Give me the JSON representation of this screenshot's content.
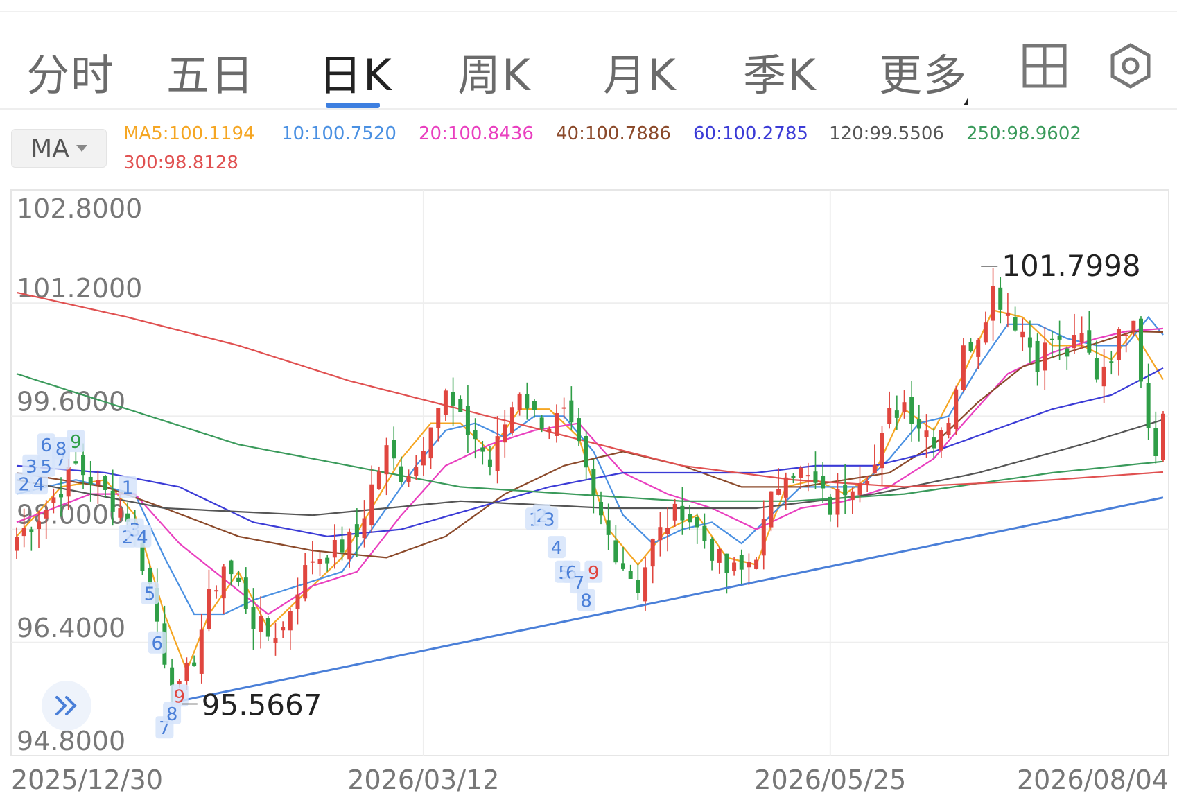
{
  "tabs": [
    {
      "label": "分时",
      "active": false
    },
    {
      "label": "五日",
      "active": false
    },
    {
      "label": "日K",
      "active": true
    },
    {
      "label": "周K",
      "active": false
    },
    {
      "label": "月K",
      "active": false
    },
    {
      "label": "季K",
      "active": false
    },
    {
      "label": "更多",
      "active": false
    }
  ],
  "icons": {
    "grid": "grid-icon",
    "settings": "settings-icon",
    "expand": "double-chevron-right-icon"
  },
  "ma": {
    "button_label": "MA",
    "values": [
      {
        "label": "MA5:100.1194",
        "color": "#f5a623"
      },
      {
        "label": "10:100.7520",
        "color": "#4a90e2"
      },
      {
        "label": "20:100.8436",
        "color": "#e93fbf"
      },
      {
        "label": "40:100.7886",
        "color": "#8b4a2b"
      },
      {
        "label": "60:100.2785",
        "color": "#3b3bd6"
      },
      {
        "label": "120:99.5506",
        "color": "#555555"
      },
      {
        "label": "250:98.9602",
        "color": "#3a9a5b"
      },
      {
        "label": "300:98.8128",
        "color": "#e05050"
      }
    ]
  },
  "chart_data": {
    "type": "candlestick",
    "ylim": [
      94.8,
      102.8
    ],
    "y_ticks": [
      "102.8000",
      "101.2000",
      "99.6000",
      "98.0000",
      "96.4000",
      "94.8000"
    ],
    "x_ticks": [
      "2025/12/30",
      "2026/03/12",
      "2026/05/25",
      "2026/08/04"
    ],
    "annotations": {
      "high": "101.7998",
      "low": "95.5667"
    },
    "up_color": "#e0463f",
    "down_color": "#2f9e47",
    "trendline": {
      "color": "#4a7fd8",
      "from": 95.57,
      "to": 98.45
    },
    "close_path": [
      [
        0,
        97.9
      ],
      [
        4,
        98.3
      ],
      [
        8,
        98.9
      ],
      [
        12,
        98.5
      ],
      [
        15,
        98.2
      ],
      [
        18,
        97.2
      ],
      [
        20,
        96.2
      ],
      [
        22,
        95.7
      ],
      [
        24,
        96.2
      ],
      [
        26,
        97.0
      ],
      [
        28,
        97.5
      ],
      [
        30,
        97.2
      ],
      [
        32,
        96.7
      ],
      [
        34,
        96.5
      ],
      [
        36,
        96.6
      ],
      [
        38,
        97.2
      ],
      [
        40,
        97.6
      ],
      [
        43,
        97.7
      ],
      [
        46,
        97.9
      ],
      [
        48,
        98.6
      ],
      [
        50,
        99.1
      ],
      [
        52,
        98.8
      ],
      [
        54,
        98.9
      ],
      [
        56,
        99.6
      ],
      [
        58,
        99.9
      ],
      [
        60,
        99.5
      ],
      [
        62,
        99.3
      ],
      [
        64,
        98.9
      ],
      [
        66,
        99.5
      ],
      [
        68,
        100.0
      ],
      [
        70,
        99.6
      ],
      [
        72,
        99.5
      ],
      [
        74,
        99.6
      ],
      [
        76,
        99.1
      ],
      [
        78,
        98.4
      ],
      [
        80,
        97.9
      ],
      [
        82,
        97.5
      ],
      [
        84,
        97.2
      ],
      [
        86,
        97.8
      ],
      [
        88,
        98.1
      ],
      [
        90,
        98.3
      ],
      [
        92,
        98.0
      ],
      [
        94,
        97.7
      ],
      [
        96,
        97.4
      ],
      [
        98,
        97.4
      ],
      [
        100,
        97.7
      ],
      [
        102,
        98.4
      ],
      [
        104,
        98.9
      ],
      [
        106,
        98.8
      ],
      [
        108,
        98.6
      ],
      [
        110,
        98.3
      ],
      [
        112,
        98.6
      ],
      [
        114,
        98.8
      ],
      [
        116,
        98.9
      ],
      [
        118,
        99.6
      ],
      [
        120,
        99.8
      ],
      [
        122,
        99.5
      ],
      [
        124,
        99.3
      ],
      [
        126,
        99.6
      ],
      [
        128,
        100.5
      ],
      [
        130,
        100.8
      ],
      [
        132,
        101.4
      ],
      [
        134,
        101.1
      ],
      [
        136,
        100.8
      ],
      [
        138,
        100.4
      ],
      [
        140,
        100.7
      ],
      [
        142,
        100.5
      ],
      [
        144,
        100.7
      ],
      [
        146,
        100.2
      ],
      [
        148,
        100.5
      ],
      [
        150,
        100.9
      ],
      [
        151,
        101.1
      ],
      [
        152,
        100.2
      ],
      [
        153,
        99.5
      ],
      [
        154,
        99.2
      ],
      [
        155,
        99.6
      ]
    ],
    "ma_lines": [
      {
        "name": "MA5",
        "color": "#f5a623",
        "pts": [
          [
            0,
            97.9
          ],
          [
            6,
            98.6
          ],
          [
            12,
            98.7
          ],
          [
            16,
            98.2
          ],
          [
            20,
            96.8
          ],
          [
            23,
            96.0
          ],
          [
            26,
            96.8
          ],
          [
            30,
            97.4
          ],
          [
            34,
            96.6
          ],
          [
            38,
            97.0
          ],
          [
            44,
            97.6
          ],
          [
            48,
            98.3
          ],
          [
            52,
            99.0
          ],
          [
            56,
            99.5
          ],
          [
            60,
            99.5
          ],
          [
            64,
            99.1
          ],
          [
            68,
            99.7
          ],
          [
            72,
            99.7
          ],
          [
            76,
            99.3
          ],
          [
            80,
            98.0
          ],
          [
            84,
            97.5
          ],
          [
            88,
            98.0
          ],
          [
            92,
            98.2
          ],
          [
            96,
            97.6
          ],
          [
            100,
            97.5
          ],
          [
            104,
            98.6
          ],
          [
            108,
            98.7
          ],
          [
            112,
            98.5
          ],
          [
            116,
            98.8
          ],
          [
            120,
            99.7
          ],
          [
            124,
            99.4
          ],
          [
            128,
            100.2
          ],
          [
            132,
            101.1
          ],
          [
            136,
            101.0
          ],
          [
            140,
            100.6
          ],
          [
            144,
            100.6
          ],
          [
            148,
            100.4
          ],
          [
            151,
            100.8
          ],
          [
            155,
            100.12
          ]
        ]
      },
      {
        "name": "MA10",
        "color": "#4a90e2",
        "pts": [
          [
            0,
            98.5
          ],
          [
            8,
            98.7
          ],
          [
            16,
            98.5
          ],
          [
            20,
            97.6
          ],
          [
            24,
            96.8
          ],
          [
            28,
            96.8
          ],
          [
            32,
            97.0
          ],
          [
            38,
            97.2
          ],
          [
            44,
            97.4
          ],
          [
            50,
            98.3
          ],
          [
            54,
            98.9
          ],
          [
            58,
            99.4
          ],
          [
            62,
            99.5
          ],
          [
            66,
            99.3
          ],
          [
            70,
            99.6
          ],
          [
            74,
            99.6
          ],
          [
            78,
            99.1
          ],
          [
            82,
            98.2
          ],
          [
            86,
            97.8
          ],
          [
            90,
            98.0
          ],
          [
            94,
            98.1
          ],
          [
            98,
            97.8
          ],
          [
            102,
            98.2
          ],
          [
            106,
            98.6
          ],
          [
            110,
            98.6
          ],
          [
            114,
            98.6
          ],
          [
            118,
            99.0
          ],
          [
            122,
            99.5
          ],
          [
            126,
            99.6
          ],
          [
            130,
            100.3
          ],
          [
            134,
            100.9
          ],
          [
            138,
            100.9
          ],
          [
            142,
            100.7
          ],
          [
            146,
            100.6
          ],
          [
            150,
            100.6
          ],
          [
            153,
            101.0
          ],
          [
            155,
            100.75
          ]
        ]
      },
      {
        "name": "MA20",
        "color": "#e93fbf",
        "pts": [
          [
            0,
            98.1
          ],
          [
            10,
            98.5
          ],
          [
            16,
            98.5
          ],
          [
            22,
            97.8
          ],
          [
            28,
            97.3
          ],
          [
            34,
            96.8
          ],
          [
            40,
            97.2
          ],
          [
            46,
            97.4
          ],
          [
            52,
            98.2
          ],
          [
            58,
            98.9
          ],
          [
            64,
            99.2
          ],
          [
            70,
            99.4
          ],
          [
            76,
            99.5
          ],
          [
            82,
            98.8
          ],
          [
            88,
            98.5
          ],
          [
            94,
            98.3
          ],
          [
            100,
            98.0
          ],
          [
            106,
            98.3
          ],
          [
            112,
            98.4
          ],
          [
            118,
            98.6
          ],
          [
            124,
            99.0
          ],
          [
            128,
            99.5
          ],
          [
            134,
            100.2
          ],
          [
            140,
            100.5
          ],
          [
            146,
            100.7
          ],
          [
            150,
            100.8
          ],
          [
            155,
            100.84
          ]
        ]
      },
      {
        "name": "MA40",
        "color": "#8b4a2b",
        "pts": [
          [
            0,
            98.8
          ],
          [
            12,
            98.6
          ],
          [
            20,
            98.3
          ],
          [
            30,
            97.9
          ],
          [
            40,
            97.7
          ],
          [
            50,
            97.6
          ],
          [
            58,
            97.9
          ],
          [
            66,
            98.5
          ],
          [
            74,
            98.9
          ],
          [
            82,
            99.1
          ],
          [
            90,
            98.9
          ],
          [
            98,
            98.6
          ],
          [
            106,
            98.6
          ],
          [
            112,
            98.7
          ],
          [
            118,
            98.8
          ],
          [
            124,
            99.2
          ],
          [
            130,
            99.8
          ],
          [
            136,
            100.3
          ],
          [
            142,
            100.5
          ],
          [
            148,
            100.7
          ],
          [
            151,
            100.8
          ],
          [
            155,
            100.79
          ]
        ]
      },
      {
        "name": "MA60",
        "color": "#3b3bd6",
        "pts": [
          [
            0,
            98.9
          ],
          [
            12,
            98.8
          ],
          [
            22,
            98.6
          ],
          [
            32,
            98.1
          ],
          [
            42,
            97.9
          ],
          [
            52,
            98.0
          ],
          [
            62,
            98.3
          ],
          [
            72,
            98.6
          ],
          [
            82,
            98.8
          ],
          [
            92,
            98.8
          ],
          [
            100,
            98.8
          ],
          [
            108,
            98.9
          ],
          [
            116,
            98.9
          ],
          [
            124,
            99.1
          ],
          [
            132,
            99.4
          ],
          [
            140,
            99.7
          ],
          [
            148,
            99.9
          ],
          [
            155,
            100.28
          ]
        ]
      },
      {
        "name": "MA120",
        "color": "#555555",
        "pts": [
          [
            0,
            98.7
          ],
          [
            20,
            98.3
          ],
          [
            40,
            98.2
          ],
          [
            60,
            98.4
          ],
          [
            80,
            98.3
          ],
          [
            100,
            98.3
          ],
          [
            116,
            98.5
          ],
          [
            130,
            98.8
          ],
          [
            144,
            99.2
          ],
          [
            155,
            99.55
          ]
        ]
      },
      {
        "name": "MA250",
        "color": "#3a9a5b",
        "pts": [
          [
            0,
            100.2
          ],
          [
            15,
            99.7
          ],
          [
            30,
            99.2
          ],
          [
            45,
            98.9
          ],
          [
            60,
            98.6
          ],
          [
            75,
            98.5
          ],
          [
            90,
            98.4
          ],
          [
            105,
            98.4
          ],
          [
            120,
            98.5
          ],
          [
            140,
            98.8
          ],
          [
            155,
            98.96
          ]
        ]
      },
      {
        "name": "MA300",
        "color": "#e05050",
        "pts": [
          [
            0,
            101.35
          ],
          [
            15,
            101.0
          ],
          [
            30,
            100.6
          ],
          [
            45,
            100.1
          ],
          [
            60,
            99.7
          ],
          [
            75,
            99.3
          ],
          [
            90,
            98.9
          ],
          [
            105,
            98.7
          ],
          [
            120,
            98.6
          ],
          [
            140,
            98.7
          ],
          [
            155,
            98.81
          ]
        ]
      }
    ],
    "td_markers": [
      {
        "label": "2",
        "idx": 1,
        "price": 98.65,
        "color": "#4a7fd8"
      },
      {
        "label": "3",
        "idx": 2,
        "price": 98.9,
        "color": "#4a7fd8"
      },
      {
        "label": "4",
        "idx": 3,
        "price": 98.65,
        "color": "#4a7fd8"
      },
      {
        "label": "5",
        "idx": 4,
        "price": 98.9,
        "color": "#4a7fd8"
      },
      {
        "label": "6",
        "idx": 4,
        "price": 99.2,
        "color": "#4a7fd8"
      },
      {
        "label": "7",
        "idx": 6,
        "price": 99.0,
        "color": "#4a7fd8"
      },
      {
        "label": "8",
        "idx": 6,
        "price": 99.15,
        "color": "#4a7fd8"
      },
      {
        "label": "9",
        "idx": 8,
        "price": 99.25,
        "color": "#2f9e47"
      },
      {
        "label": "1",
        "idx": 15,
        "price": 98.6,
        "color": "#4a7fd8"
      },
      {
        "label": "2",
        "idx": 15,
        "price": 97.9,
        "color": "#4a7fd8"
      },
      {
        "label": "3",
        "idx": 16,
        "price": 98.0,
        "color": "#4a7fd8"
      },
      {
        "label": "4",
        "idx": 17,
        "price": 97.9,
        "color": "#4a7fd8"
      },
      {
        "label": "5",
        "idx": 18,
        "price": 97.1,
        "color": "#4a7fd8"
      },
      {
        "label": "6",
        "idx": 19,
        "price": 96.4,
        "color": "#4a7fd8"
      },
      {
        "label": "7",
        "idx": 20,
        "price": 95.2,
        "color": "#4a7fd8"
      },
      {
        "label": "8",
        "idx": 21,
        "price": 95.4,
        "color": "#4a7fd8"
      },
      {
        "label": "9",
        "idx": 22,
        "price": 95.65,
        "color": "#e0463f"
      },
      {
        "label": "1",
        "idx": 70,
        "price": 98.15,
        "color": "#4a7fd8"
      },
      {
        "label": "2",
        "idx": 71,
        "price": 98.2,
        "color": "#4a7fd8"
      },
      {
        "label": "3",
        "idx": 72,
        "price": 98.15,
        "color": "#4a7fd8"
      },
      {
        "label": "4",
        "idx": 73,
        "price": 97.75,
        "color": "#4a7fd8"
      },
      {
        "label": "5",
        "idx": 74,
        "price": 97.4,
        "color": "#4a7fd8"
      },
      {
        "label": "6",
        "idx": 75,
        "price": 97.4,
        "color": "#4a7fd8"
      },
      {
        "label": "7",
        "idx": 76,
        "price": 97.25,
        "color": "#4a7fd8"
      },
      {
        "label": "8",
        "idx": 77,
        "price": 97.0,
        "color": "#4a7fd8"
      },
      {
        "label": "9",
        "idx": 78,
        "price": 97.4,
        "color": "#e0463f"
      }
    ]
  }
}
